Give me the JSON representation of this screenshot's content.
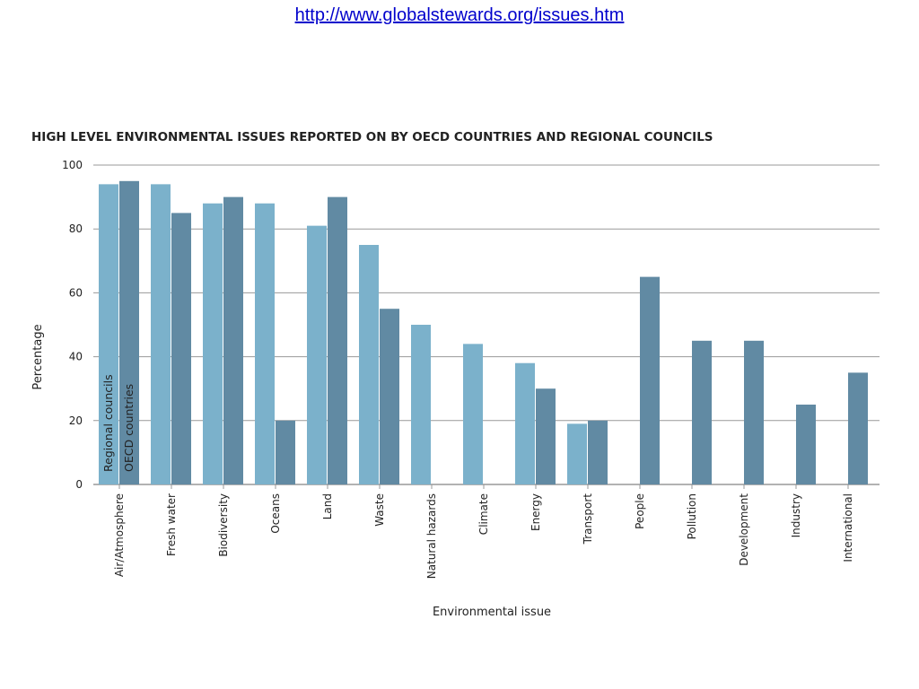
{
  "url": "http://www.globalstewards.org/issues.htm",
  "colors": {
    "regional": "#7bb1cb",
    "oecd": "#618aa3",
    "grid": "#999999",
    "link": "#0000cc"
  },
  "chart_data": {
    "type": "bar",
    "title": "HIGH LEVEL ENVIRONMENTAL ISSUES REPORTED ON BY OECD COUNTRIES AND REGIONAL COUNCILS",
    "xlabel": "Environmental issue",
    "ylabel": "Percentage",
    "ylim": [
      0,
      100
    ],
    "yticks": [
      0,
      20,
      40,
      60,
      80,
      100
    ],
    "grid": true,
    "categories": [
      "Air/Atmosphere",
      "Fresh water",
      "Biodiversity",
      "Oceans",
      "Land",
      "Waste",
      "Natural hazards",
      "Climate",
      "Energy",
      "Transport",
      "People",
      "Pollution",
      "Development",
      "Industry",
      "International"
    ],
    "series": [
      {
        "name": "Regional councils",
        "values": [
          94,
          94,
          88,
          88,
          81,
          75,
          50,
          44,
          38,
          19,
          0,
          0,
          0,
          0,
          0
        ]
      },
      {
        "name": "OECD countries",
        "values": [
          95,
          85,
          90,
          20,
          90,
          55,
          0,
          0,
          30,
          20,
          65,
          45,
          45,
          25,
          35
        ]
      }
    ],
    "legend": "inside-first-category-bars"
  }
}
